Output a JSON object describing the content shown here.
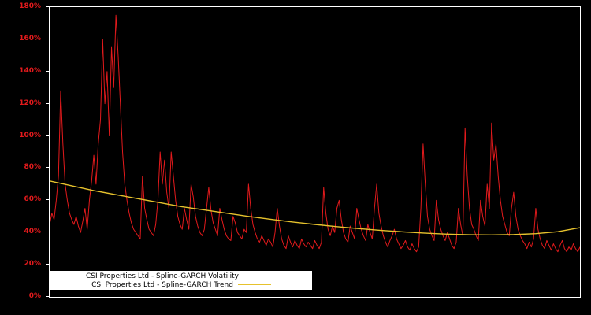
{
  "chart_data": {
    "type": "line",
    "title": "",
    "xlabel": "",
    "ylabel": "",
    "ylim": [
      0,
      180
    ],
    "y_ticks": [
      0,
      20,
      40,
      60,
      80,
      100,
      120,
      140,
      160,
      180
    ],
    "y_tick_suffix": "%",
    "grid": false,
    "background_color": "#000000",
    "axis_border_color": "#ffffff",
    "tick_label_color": "#e31a1c",
    "legend": {
      "position": "bottom-left",
      "background": "#ffffff",
      "text_color": "#000000"
    },
    "series": [
      {
        "name": "CSI Properties Ltd - Spline-GARCH Volatility",
        "color": "#e31a1c",
        "stroke_width": 1,
        "values": [
          45,
          52,
          48,
          60,
          75,
          128,
          95,
          70,
          60,
          52,
          48,
          45,
          50,
          44,
          40,
          47,
          55,
          42,
          60,
          72,
          88,
          70,
          95,
          110,
          160,
          120,
          140,
          100,
          155,
          130,
          175,
          150,
          120,
          90,
          70,
          60,
          52,
          46,
          42,
          40,
          38,
          36,
          75,
          55,
          48,
          42,
          40,
          38,
          45,
          60,
          90,
          70,
          85,
          65,
          55,
          90,
          75,
          60,
          50,
          45,
          42,
          55,
          48,
          42,
          70,
          62,
          50,
          44,
          40,
          38,
          42,
          55,
          68,
          54,
          46,
          42,
          38,
          55,
          48,
          42,
          38,
          36,
          35,
          50,
          46,
          40,
          38,
          36,
          42,
          40,
          70,
          55,
          45,
          40,
          36,
          34,
          38,
          35,
          32,
          36,
          34,
          31,
          40,
          55,
          44,
          36,
          32,
          30,
          38,
          34,
          31,
          35,
          32,
          30,
          36,
          33,
          31,
          34,
          32,
          30,
          35,
          32,
          30,
          34,
          68,
          52,
          42,
          38,
          44,
          40,
          55,
          60,
          48,
          40,
          36,
          34,
          44,
          40,
          36,
          55,
          48,
          42,
          38,
          35,
          45,
          40,
          36,
          55,
          70,
          52,
          44,
          38,
          34,
          31,
          35,
          38,
          42,
          36,
          33,
          30,
          32,
          35,
          31,
          29,
          33,
          30,
          28,
          31,
          55,
          95,
          70,
          50,
          42,
          38,
          35,
          60,
          48,
          42,
          38,
          35,
          40,
          36,
          32,
          30,
          34,
          55,
          45,
          38,
          105,
          75,
          55,
          45,
          42,
          38,
          35,
          60,
          50,
          44,
          70,
          55,
          108,
          85,
          95,
          75,
          60,
          50,
          45,
          40,
          38,
          55,
          65,
          50,
          42,
          38,
          35,
          33,
          30,
          34,
          31,
          36,
          55,
          42,
          36,
          32,
          30,
          35,
          32,
          29,
          33,
          30,
          28,
          32,
          35,
          30,
          28,
          31,
          29,
          33,
          30,
          28,
          31
        ]
      },
      {
        "name": "CSI Properties Ltd - Spline-GARCH Trend",
        "color": "#e6c22d",
        "stroke_width": 1.4,
        "values": [
          72,
          69,
          66,
          63.5,
          61,
          58.5,
          56,
          54,
          52,
          50,
          48.2,
          46.5,
          45,
          43.6,
          42.4,
          41.3,
          40.4,
          39.6,
          39,
          38.6,
          38.5,
          38.7,
          39.3,
          40.5,
          43
        ]
      }
    ]
  }
}
